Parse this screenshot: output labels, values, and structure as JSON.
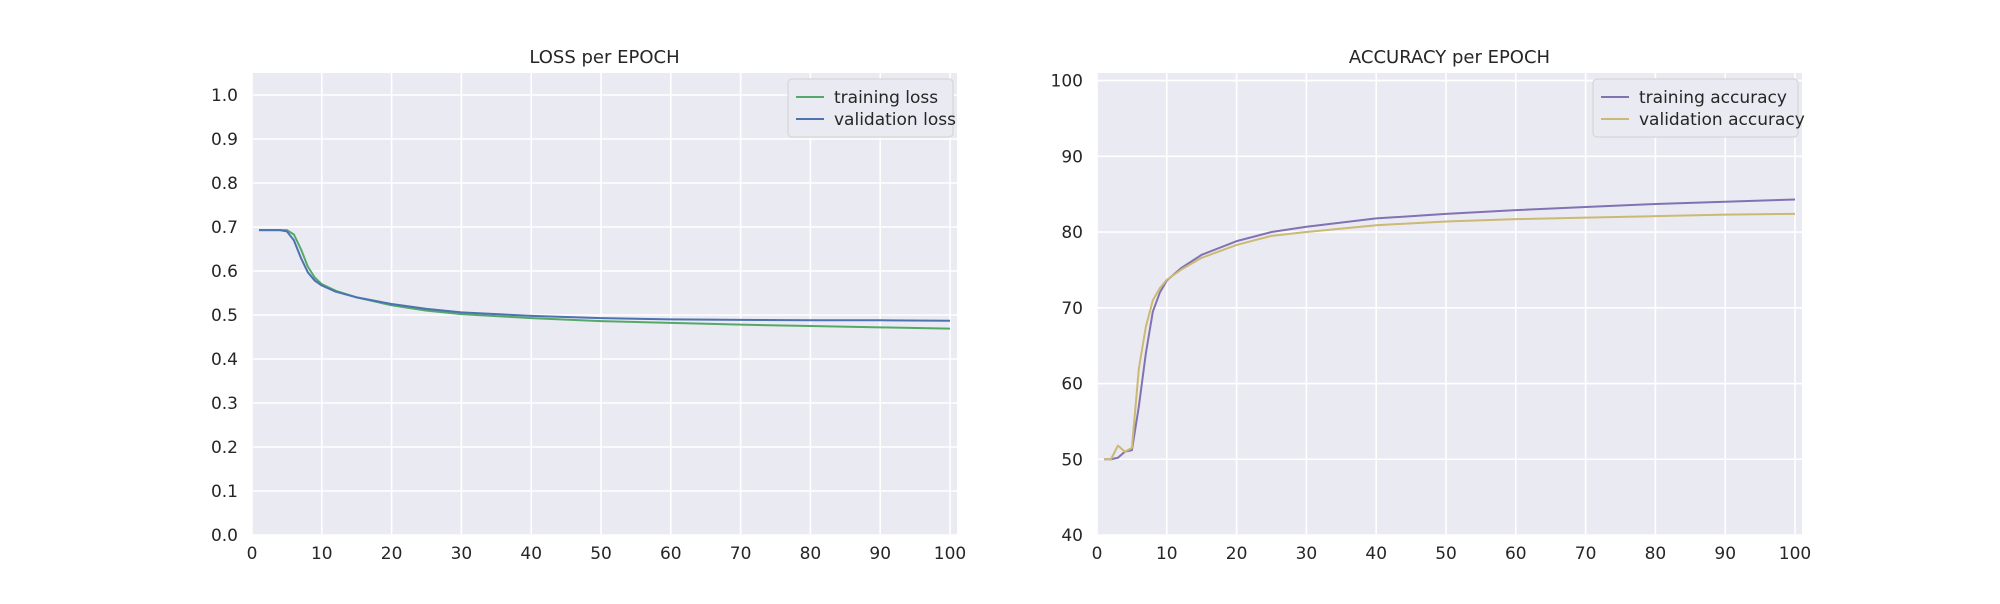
{
  "chart_data": [
    {
      "type": "line",
      "title": "LOSS per EPOCH",
      "xlabel": "",
      "ylabel": "",
      "xlim": [
        0,
        101
      ],
      "ylim": [
        0,
        1.05
      ],
      "xticks": [
        "0",
        "10",
        "20",
        "30",
        "40",
        "50",
        "60",
        "70",
        "80",
        "90",
        "100"
      ],
      "yticks": [
        "0.0",
        "0.1",
        "0.2",
        "0.3",
        "0.4",
        "0.5",
        "0.6",
        "0.7",
        "0.8",
        "0.9",
        "1.0"
      ],
      "grid": true,
      "legend_position": "top-right",
      "x": [
        1,
        2,
        3,
        4,
        5,
        6,
        7,
        8,
        9,
        10,
        12,
        15,
        20,
        25,
        30,
        40,
        50,
        60,
        70,
        80,
        90,
        100
      ],
      "series": [
        {
          "name": "training loss",
          "color": "#55a868",
          "values": [
            0.693,
            0.693,
            0.693,
            0.693,
            0.693,
            0.683,
            0.65,
            0.61,
            0.585,
            0.57,
            0.555,
            0.54,
            0.522,
            0.51,
            0.502,
            0.493,
            0.486,
            0.482,
            0.478,
            0.475,
            0.472,
            0.469
          ]
        },
        {
          "name": "validation loss",
          "color": "#4c72b0",
          "values": [
            0.693,
            0.693,
            0.693,
            0.693,
            0.69,
            0.67,
            0.63,
            0.597,
            0.578,
            0.567,
            0.553,
            0.54,
            0.525,
            0.514,
            0.506,
            0.498,
            0.493,
            0.49,
            0.489,
            0.488,
            0.488,
            0.487
          ]
        }
      ]
    },
    {
      "type": "line",
      "title": "ACCURACY per EPOCH",
      "xlabel": "",
      "ylabel": "",
      "xlim": [
        0,
        101
      ],
      "ylim": [
        40,
        101
      ],
      "xticks": [
        "0",
        "10",
        "20",
        "30",
        "40",
        "50",
        "60",
        "70",
        "80",
        "90",
        "100"
      ],
      "yticks": [
        "40",
        "50",
        "60",
        "70",
        "80",
        "90",
        "100"
      ],
      "grid": true,
      "legend_position": "top-right",
      "x": [
        1,
        2,
        3,
        4,
        5,
        6,
        7,
        8,
        9,
        10,
        12,
        15,
        20,
        25,
        30,
        40,
        50,
        60,
        70,
        80,
        90,
        100
      ],
      "series": [
        {
          "name": "training accuracy",
          "color": "#8172b2",
          "values": [
            50.0,
            50.0,
            50.2,
            51.0,
            51.2,
            57.0,
            64.0,
            69.5,
            72.0,
            73.6,
            75.2,
            77.0,
            78.8,
            80.0,
            80.7,
            81.8,
            82.4,
            82.9,
            83.3,
            83.7,
            84.0,
            84.3
          ]
        },
        {
          "name": "validation accuracy",
          "color": "#ccb974",
          "values": [
            50.0,
            50.0,
            51.8,
            51.0,
            51.5,
            62.0,
            67.5,
            71.0,
            72.6,
            73.7,
            75.0,
            76.6,
            78.3,
            79.5,
            80.0,
            80.9,
            81.4,
            81.7,
            81.9,
            82.1,
            82.3,
            82.4
          ]
        }
      ]
    }
  ]
}
